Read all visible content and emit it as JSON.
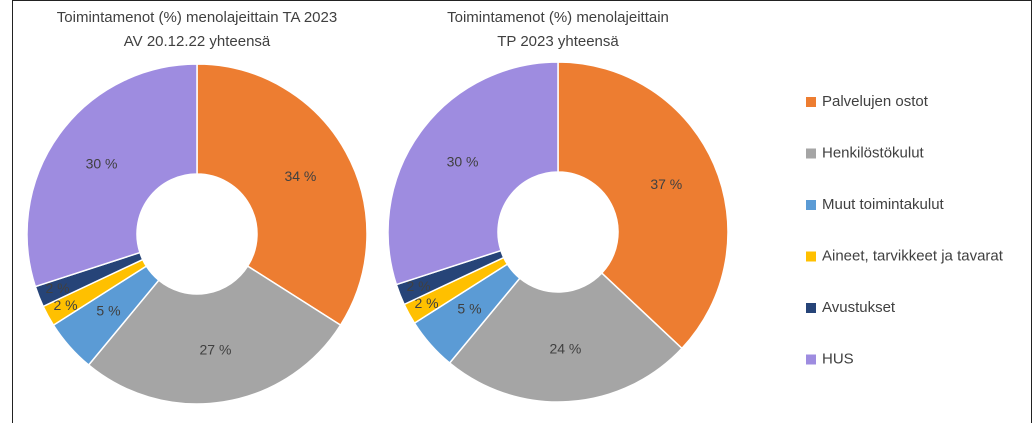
{
  "chart_data": [
    {
      "type": "pie",
      "title": [
        "Toimintamenot (%) menolajeittain TA 2023",
        "AV 20.12.22 yhteensä"
      ],
      "values": [
        34,
        27,
        5,
        2,
        2,
        30
      ],
      "value_labels": [
        "34 %",
        "27 %",
        "5 %",
        "2 %",
        "2 %",
        "30 %"
      ]
    },
    {
      "type": "pie",
      "title": [
        "Toimintamenot (%) menolajeittain",
        "TP 2023 yhteensä"
      ],
      "values": [
        37,
        24,
        5,
        2,
        2,
        30
      ],
      "value_labels": [
        "37 %",
        "24 %",
        "5 %",
        "2 %",
        "2 %",
        "30 %"
      ]
    }
  ],
  "legend": {
    "categories": [
      "Palvelujen ostot",
      "Henkilöstökulut",
      "Muut toimintakulut",
      "Aineet, tarvikkeet ja tavarat",
      "Avustukset",
      "HUS"
    ],
    "colors": [
      "#ed7d31",
      "#a5a5a5",
      "#5b9bd5",
      "#ffc000",
      "#264478",
      "#9e8ce0"
    ]
  }
}
